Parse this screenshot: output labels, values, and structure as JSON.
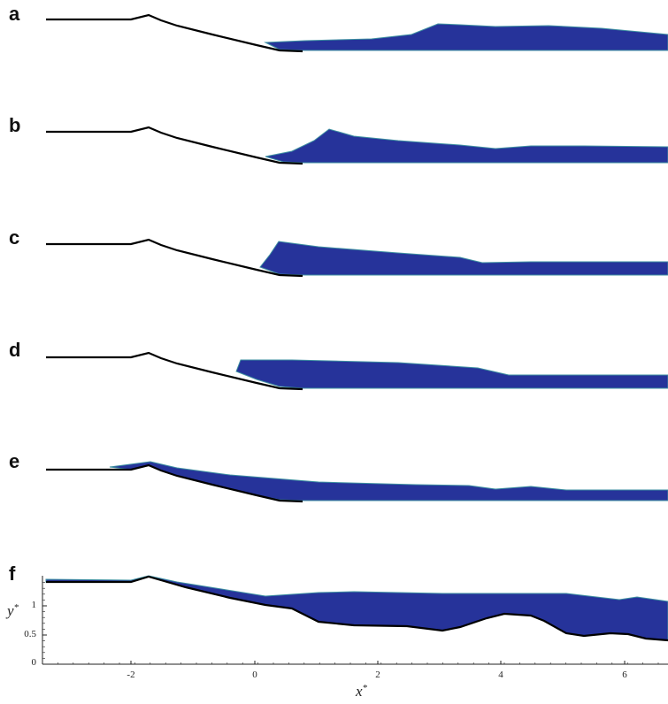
{
  "panels": [
    {
      "label": "a"
    },
    {
      "label": "b"
    },
    {
      "label": "c"
    },
    {
      "label": "d"
    },
    {
      "label": "e"
    },
    {
      "label": "f"
    }
  ],
  "axes": {
    "x_label": "x",
    "x_label_sup": "*",
    "y_label": "y",
    "y_label_sup": "*",
    "x_ticks": [
      "-2",
      "0",
      "2",
      "4",
      "6"
    ],
    "y_ticks": [
      "0",
      "0.5",
      "1"
    ]
  },
  "colors": {
    "water": "#26339a",
    "water_edge": "#3d8fa0",
    "foam": "#c8d85a",
    "bed": "#000000"
  }
}
